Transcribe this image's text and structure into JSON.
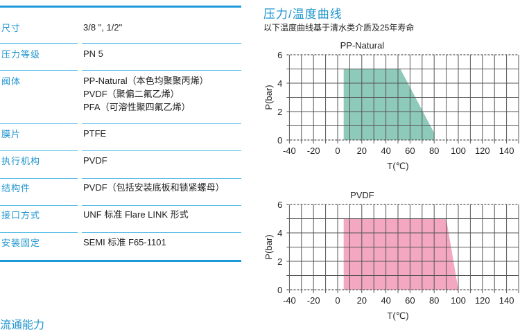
{
  "specs": [
    {
      "label": "尺寸",
      "values": [
        "3/8 \", 1/2\""
      ]
    },
    {
      "label": "压力等级",
      "values": [
        "PN 5"
      ]
    },
    {
      "label": "阀体",
      "values": [
        "PP-Natural（本色均聚聚丙烯）",
        "PVDF（聚偏二氟乙烯）",
        "PFA（可溶性聚四氟乙烯）"
      ]
    },
    {
      "label": "膜片",
      "values": [
        "PTFE"
      ]
    },
    {
      "label": "执行机构",
      "values": [
        "PVDF"
      ]
    },
    {
      "label": "结构件",
      "values": [
        "PVDF（包括安装底板和锁紧螺母）"
      ]
    },
    {
      "label": "接口方式",
      "values": [
        "UNF 标准 Flare LINK 形式"
      ]
    },
    {
      "label": "安装固定",
      "values": [
        "SEMI 标准 F65-1101"
      ]
    }
  ],
  "section": {
    "title": "压力/温度曲线",
    "subtitle": "以下温度曲线基于清水类介质及25年寿命"
  },
  "next_section_title": "流通能力",
  "accent_color": "#1a9ad8",
  "chart_data": [
    {
      "type": "area",
      "title": "PP-Natural",
      "xlabel": "T(℃)",
      "ylabel": "P(bar)",
      "xlim": [
        -40,
        150
      ],
      "ylim": [
        0,
        6
      ],
      "xticks": [
        -40,
        -20,
        0,
        20,
        40,
        60,
        80,
        100,
        120,
        140
      ],
      "yticks": [
        0,
        2,
        4,
        6
      ],
      "grid": true,
      "color": "#8ecab9",
      "points": [
        [
          5,
          0
        ],
        [
          5,
          5
        ],
        [
          52,
          5
        ],
        [
          80,
          0.5
        ],
        [
          80,
          0
        ]
      ]
    },
    {
      "type": "area",
      "title": "PVDF",
      "xlabel": "T(℃)",
      "ylabel": "P(bar)",
      "xlim": [
        -40,
        150
      ],
      "ylim": [
        0,
        6
      ],
      "xticks": [
        -40,
        -20,
        0,
        20,
        40,
        60,
        80,
        100,
        120,
        140
      ],
      "yticks": [
        0,
        2,
        4,
        6
      ],
      "grid": true,
      "color": "#f4a7c0",
      "points": [
        [
          5,
          0
        ],
        [
          5,
          5
        ],
        [
          90,
          5
        ],
        [
          100,
          0
        ]
      ]
    }
  ]
}
